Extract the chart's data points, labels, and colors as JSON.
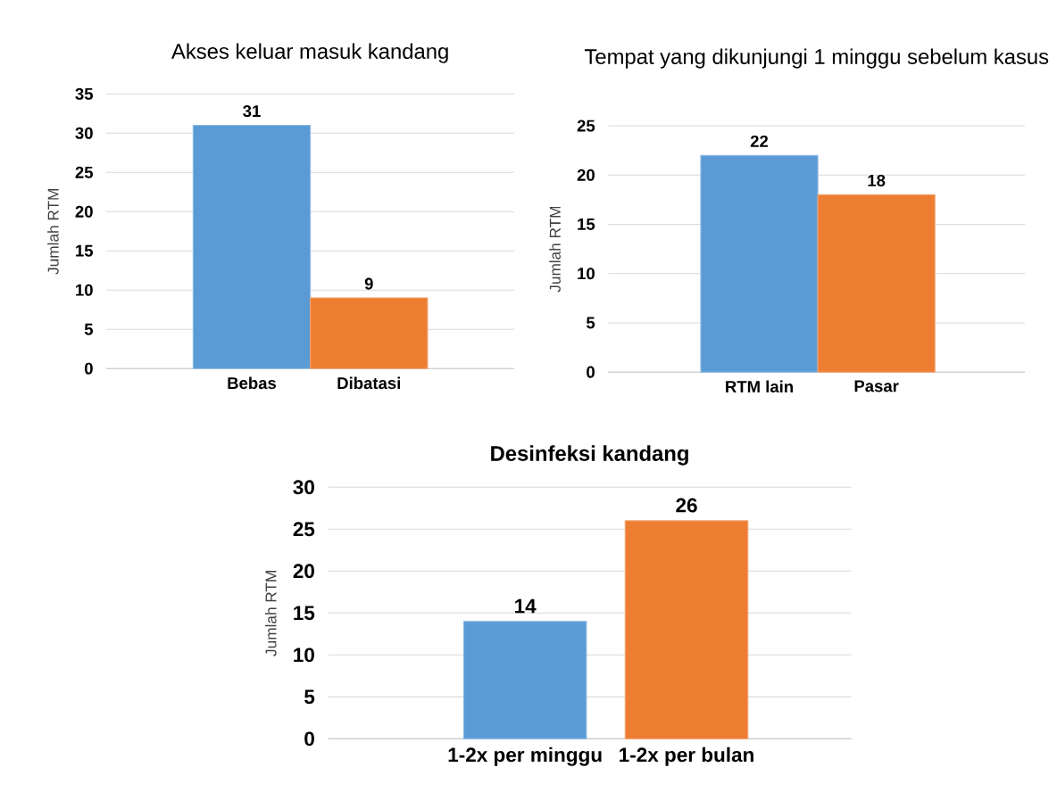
{
  "chart_data": [
    {
      "type": "bar",
      "title": "Akses keluar masuk kandang",
      "ylabel": "Jumlah RTM",
      "categories": [
        "Bebas",
        "Dibatasi"
      ],
      "values": [
        31,
        9
      ],
      "colors": [
        "#5b9bd5",
        "#ed7d31"
      ],
      "ylim": [
        0,
        35
      ],
      "yticks": [
        0,
        5,
        10,
        15,
        20,
        25,
        30,
        35
      ],
      "grid": "y",
      "data_labels": true
    },
    {
      "type": "bar",
      "title": "Tempat yang dikunjungi 1 minggu sebelum kasus",
      "ylabel": "Jumlah RTM",
      "categories": [
        "RTM lain",
        "Pasar"
      ],
      "values": [
        22,
        18
      ],
      "colors": [
        "#5b9bd5",
        "#ed7d31"
      ],
      "ylim": [
        0,
        25
      ],
      "yticks": [
        0,
        5,
        10,
        15,
        20,
        25
      ],
      "grid": "y",
      "data_labels": true
    },
    {
      "type": "bar",
      "title": "Desinfeksi kandang",
      "ylabel": "Jumlah RTM",
      "categories": [
        "1-2x per minggu",
        "1-2x per bulan"
      ],
      "values": [
        14,
        26
      ],
      "colors": [
        "#5b9bd5",
        "#ed7d31"
      ],
      "ylim": [
        0,
        30
      ],
      "yticks": [
        0,
        5,
        10,
        15,
        20,
        25,
        30
      ],
      "grid": "y",
      "data_labels": true
    }
  ]
}
